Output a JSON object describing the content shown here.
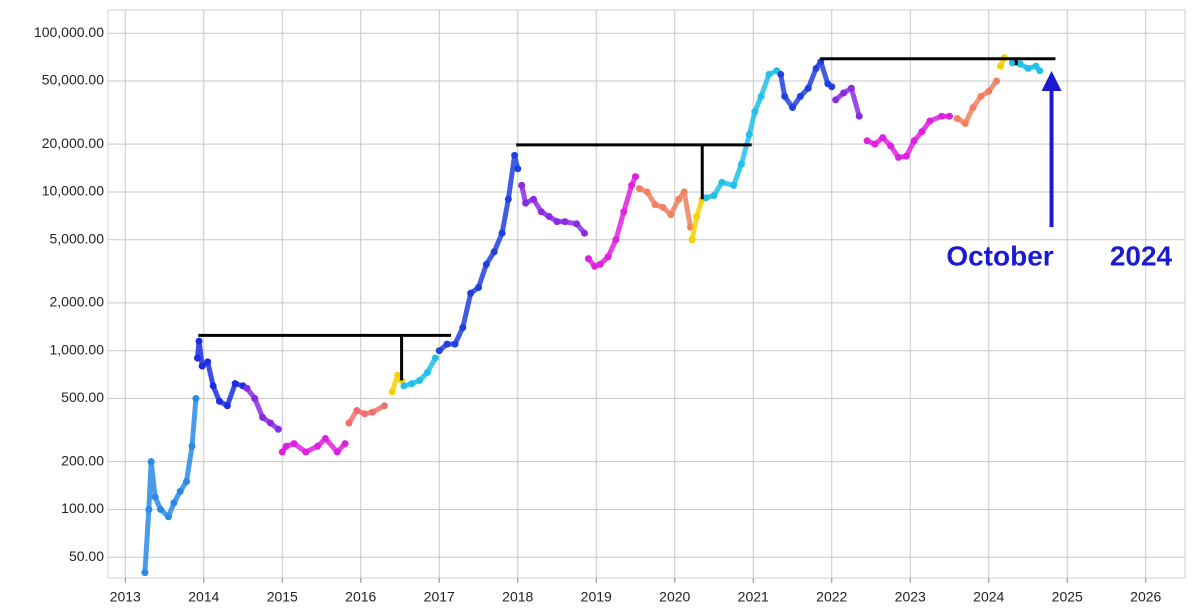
{
  "chart_data": {
    "type": "scatter",
    "log_y": true,
    "grid": true,
    "xlim": [
      2012.78,
      2026.5
    ],
    "xticks": [
      2013,
      2014,
      2015,
      2016,
      2017,
      2018,
      2019,
      2020,
      2021,
      2022,
      2023,
      2024,
      2025,
      2026
    ],
    "ylim": [
      37,
      140000
    ],
    "yticks": [
      {
        "value": 50,
        "label": "50.00"
      },
      {
        "value": 100,
        "label": "100.00"
      },
      {
        "value": 200,
        "label": "200.00"
      },
      {
        "value": 500,
        "label": "500.00"
      },
      {
        "value": 1000,
        "label": "1,000.00"
      },
      {
        "value": 2000,
        "label": "2,000.00"
      },
      {
        "value": 5000,
        "label": "5,000.00"
      },
      {
        "value": 10000,
        "label": "10,000.00"
      },
      {
        "value": 20000,
        "label": "20,000.00"
      },
      {
        "value": 50000,
        "label": "50,000.00"
      },
      {
        "value": 100000,
        "label": "100,000.00"
      }
    ],
    "series": [
      {
        "color": "#2a8ae6",
        "x": [
          2013.25,
          2013.3,
          2013.33,
          2013.38,
          2013.45,
          2013.55,
          2013.62,
          2013.7,
          2013.78,
          2013.85,
          2013.9
        ],
        "values": [
          40,
          100,
          200,
          120,
          100,
          90,
          110,
          130,
          150,
          250,
          500
        ]
      },
      {
        "color": "#1a2de0",
        "x": [
          2013.92,
          2013.94,
          2013.98,
          2014.05,
          2014.12,
          2014.2,
          2014.3,
          2014.4,
          2014.5
        ],
        "values": [
          900,
          1150,
          800,
          850,
          600,
          480,
          450,
          620,
          600
        ]
      },
      {
        "color": "#8a2be2",
        "x": [
          2014.55,
          2014.65,
          2014.75,
          2014.85,
          2014.95
        ],
        "values": [
          580,
          500,
          380,
          350,
          320
        ]
      },
      {
        "color": "#e020e0",
        "x": [
          2015.0,
          2015.05,
          2015.15,
          2015.3,
          2015.45,
          2015.55,
          2015.7,
          2015.8
        ],
        "values": [
          230,
          250,
          260,
          230,
          250,
          280,
          230,
          260
        ]
      },
      {
        "color": "#f07070",
        "x": [
          2015.85,
          2015.95,
          2016.05,
          2016.15,
          2016.3
        ],
        "values": [
          350,
          420,
          400,
          410,
          450
        ]
      },
      {
        "color": "#f5d000",
        "x": [
          2016.4,
          2016.47,
          2016.52
        ],
        "values": [
          550,
          700,
          650
        ]
      },
      {
        "color": "#20c0e8",
        "x": [
          2016.55,
          2016.65,
          2016.75,
          2016.85,
          2016.95
        ],
        "values": [
          600,
          620,
          650,
          730,
          900
        ]
      },
      {
        "color": "#2040e0",
        "x": [
          2017.0,
          2017.1,
          2017.2,
          2017.3,
          2017.4,
          2017.5,
          2017.6,
          2017.7,
          2017.8,
          2017.88,
          2017.96,
          2018.0
        ],
        "values": [
          1000,
          1100,
          1100,
          1400,
          2300,
          2500,
          3500,
          4200,
          5500,
          9000,
          17000,
          14000
        ]
      },
      {
        "color": "#8a2be2",
        "x": [
          2018.05,
          2018.1,
          2018.2,
          2018.3,
          2018.4,
          2018.5,
          2018.6,
          2018.75,
          2018.85
        ],
        "values": [
          11000,
          8500,
          9000,
          7500,
          7000,
          6500,
          6500,
          6300,
          5500
        ]
      },
      {
        "color": "#e020e0",
        "x": [
          2018.9,
          2018.98,
          2019.05,
          2019.15,
          2019.25,
          2019.35,
          2019.45,
          2019.5
        ],
        "values": [
          3800,
          3400,
          3500,
          3900,
          5000,
          7500,
          11000,
          12500
        ]
      },
      {
        "color": "#f08060",
        "x": [
          2019.55,
          2019.65,
          2019.75,
          2019.85,
          2019.95,
          2020.05,
          2020.12,
          2020.2
        ],
        "values": [
          10500,
          10000,
          8300,
          8000,
          7200,
          9000,
          10000,
          6000
        ]
      },
      {
        "color": "#f5d000",
        "x": [
          2020.22,
          2020.28,
          2020.35
        ],
        "values": [
          5000,
          7000,
          9000
        ]
      },
      {
        "color": "#20c0e8",
        "x": [
          2020.4,
          2020.5,
          2020.6,
          2020.75,
          2020.85,
          2020.95,
          2021.02,
          2021.1,
          2021.2,
          2021.3
        ],
        "values": [
          9200,
          9500,
          11500,
          11000,
          15000,
          23000,
          32000,
          40000,
          55000,
          58000
        ]
      },
      {
        "color": "#2040e0",
        "x": [
          2021.35,
          2021.4,
          2021.5,
          2021.6,
          2021.7,
          2021.8,
          2021.86,
          2021.95,
          2022.0
        ],
        "values": [
          55000,
          40000,
          34000,
          40000,
          45000,
          60000,
          66000,
          48000,
          46000
        ]
      },
      {
        "color": "#8a2be2",
        "x": [
          2022.05,
          2022.15,
          2022.25,
          2022.35
        ],
        "values": [
          38000,
          42000,
          45000,
          30000
        ]
      },
      {
        "color": "#e020e0",
        "x": [
          2022.45,
          2022.55,
          2022.65,
          2022.75,
          2022.85,
          2022.95,
          2023.05,
          2023.15,
          2023.25,
          2023.4,
          2023.5
        ],
        "values": [
          21000,
          20000,
          22000,
          19500,
          16500,
          16800,
          21000,
          24000,
          28000,
          30000,
          30000
        ]
      },
      {
        "color": "#f08060",
        "x": [
          2023.6,
          2023.7,
          2023.8,
          2023.9,
          2024.0,
          2024.1
        ],
        "values": [
          29000,
          27000,
          34000,
          40000,
          43000,
          50000
        ]
      },
      {
        "color": "#f5d000",
        "x": [
          2024.15,
          2024.2
        ],
        "values": [
          62000,
          70000
        ]
      },
      {
        "color": "#20c0e8",
        "x": [
          2024.3,
          2024.4,
          2024.5,
          2024.6,
          2024.65
        ],
        "values": [
          65000,
          64000,
          60000,
          62000,
          58000
        ]
      }
    ],
    "ath_lines": [
      {
        "y": 1250,
        "x_start": 2013.93,
        "x_end": 2017.15,
        "drop_x": 2016.52,
        "drop_to": 650
      },
      {
        "y": 19800,
        "x_start": 2017.98,
        "x_end": 2020.98,
        "drop_x": 2020.35,
        "drop_to": 9000
      },
      {
        "y": 69000,
        "x_start": 2021.85,
        "x_end": 2024.85,
        "drop_x": 2024.35,
        "drop_to": 63000
      }
    ],
    "arrow": {
      "x": 2024.8,
      "y_from": 6000,
      "y_to": 50000,
      "color": "#1a1ad0"
    },
    "annotations": [
      {
        "text": "October"
      },
      {
        "text": "2024"
      }
    ]
  }
}
